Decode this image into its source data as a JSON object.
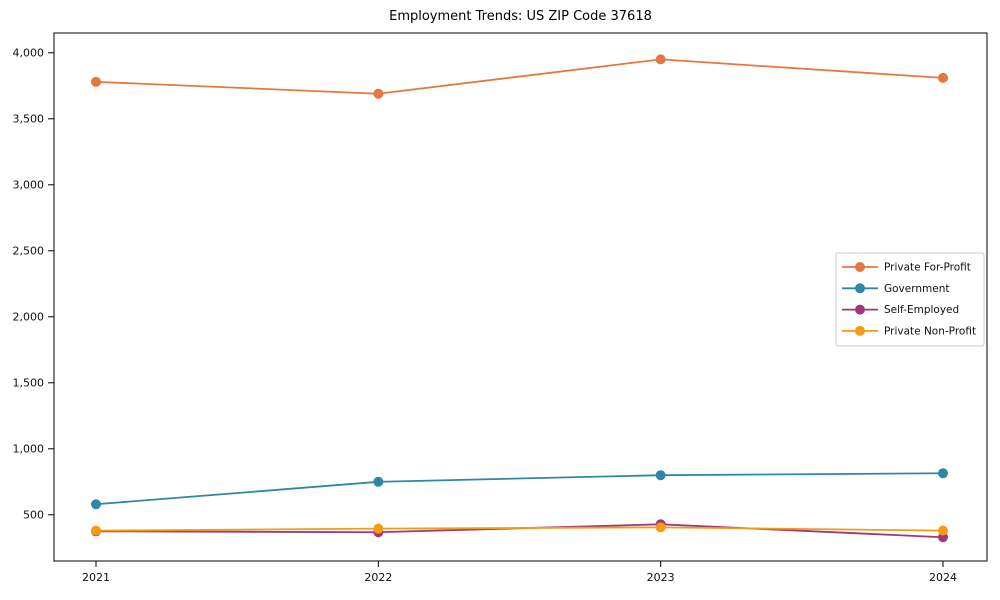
{
  "title": "Employment Trends: US ZIP Code 37618",
  "chart_data": {
    "type": "line",
    "title": "Employment Trends: US ZIP Code 37618",
    "x": [
      2021,
      2022,
      2023,
      2024
    ],
    "series": [
      {
        "name": "Private For-Profit",
        "color": "#e8763e",
        "values": [
          3780,
          3690,
          3950,
          3810
        ]
      },
      {
        "name": "Government",
        "color": "#2f87a6",
        "values": [
          580,
          750,
          800,
          815
        ]
      },
      {
        "name": "Self-Employed",
        "color": "#a23679",
        "values": [
          375,
          368,
          428,
          330
        ]
      },
      {
        "name": "Private Non-Profit",
        "color": "#f39c16",
        "values": [
          380,
          395,
          405,
          380
        ]
      }
    ],
    "xlabel": "",
    "ylabel": "",
    "ylim": [
      150,
      4150
    ],
    "yticks": [
      500,
      1000,
      1500,
      2000,
      2500,
      3000,
      3500,
      4000
    ],
    "ytick_format": "comma",
    "grid": false,
    "legend_position": "center right",
    "marker": "circle",
    "axis_color": "#000000",
    "legend_border_color": "#cccccc"
  }
}
